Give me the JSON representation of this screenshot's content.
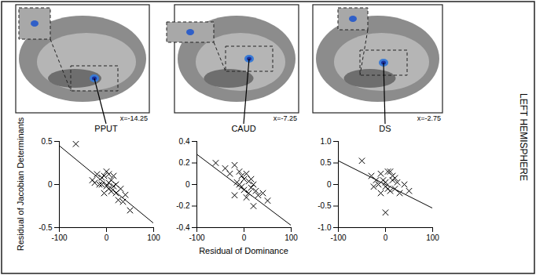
{
  "side_label": "LEFT HEMISPHERE",
  "chart_data": [
    {
      "type": "scatter",
      "title": "PPUT",
      "slice": "x=-14.25",
      "marker": "x",
      "y_label": "Residual of Jacobian Determinants",
      "xlim": [
        -100,
        100
      ],
      "xticks": [
        -100,
        0,
        100
      ],
      "ylim": [
        -0.5,
        0.5
      ],
      "yticks": [
        -0.5,
        0,
        0.5
      ],
      "x": [
        -65,
        -30,
        -20,
        -15,
        -10,
        -5,
        0,
        5,
        10,
        15,
        0,
        5,
        -5,
        10,
        20,
        25,
        30,
        40,
        50,
        -10,
        15,
        20,
        -25,
        35,
        5
      ],
      "y": [
        0.47,
        0.05,
        0.12,
        0.0,
        0.08,
        0.1,
        0.15,
        0.12,
        0.05,
        0.1,
        -0.02,
        -0.05,
        -0.1,
        -0.08,
        -0.1,
        -0.18,
        -0.05,
        -0.12,
        -0.3,
        0.0,
        -0.02,
        0.0,
        0.02,
        -0.2,
        0.02
      ],
      "fit_line": {
        "x": [
          -100,
          100
        ],
        "y": [
          0.45,
          -0.45
        ]
      }
    },
    {
      "type": "scatter",
      "title": "CAUD",
      "slice": "x=-7.25",
      "marker": "x",
      "x_label": "Residual of Dominance",
      "xlim": [
        -100,
        100
      ],
      "xticks": [
        -100,
        0,
        100
      ],
      "ylim": [
        -0.4,
        0.4
      ],
      "yticks": [
        -0.4,
        -0.2,
        0,
        0.2,
        0.4
      ],
      "x": [
        -60,
        -40,
        -30,
        -20,
        -10,
        -5,
        0,
        5,
        10,
        -15,
        -5,
        0,
        10,
        15,
        20,
        25,
        30,
        40,
        50,
        -20,
        5,
        20,
        -10,
        15
      ],
      "y": [
        0.2,
        0.15,
        0.1,
        0.18,
        0.12,
        0.08,
        0.05,
        0.1,
        0.03,
        0.02,
        -0.02,
        -0.05,
        -0.08,
        -0.03,
        0.0,
        -0.06,
        -0.1,
        -0.08,
        -0.15,
        -0.1,
        -0.12,
        -0.2,
        0.0,
        0.05
      ],
      "fit_line": {
        "x": [
          -100,
          100
        ],
        "y": [
          0.28,
          -0.38
        ]
      }
    },
    {
      "type": "scatter",
      "title": "DS",
      "slice": "x=-2.75",
      "marker": "x",
      "xlim": [
        -100,
        100
      ],
      "xticks": [
        -100,
        0,
        100
      ],
      "ylim": [
        -1,
        1
      ],
      "yticks": [
        {
          "value": -1,
          "label": "-1.0"
        },
        -0.5,
        0,
        0.5,
        {
          "value": 1,
          "label": "1.0"
        }
      ],
      "x": [
        -50,
        -30,
        -20,
        -10,
        -5,
        0,
        5,
        10,
        15,
        20,
        -15,
        0,
        5,
        -25,
        10,
        20,
        30,
        40,
        50,
        0,
        -10,
        15,
        25
      ],
      "y": [
        0.55,
        0.2,
        0.1,
        0.25,
        0.1,
        0.05,
        0.3,
        0.3,
        0.1,
        0.15,
        0.0,
        -0.05,
        -0.1,
        -0.05,
        -0.15,
        -0.1,
        -0.2,
        0.0,
        -0.15,
        -0.65,
        -0.2,
        0.2,
        0.05
      ],
      "fit_line": {
        "x": [
          -100,
          100
        ],
        "y": [
          0.55,
          -0.55
        ]
      }
    }
  ]
}
